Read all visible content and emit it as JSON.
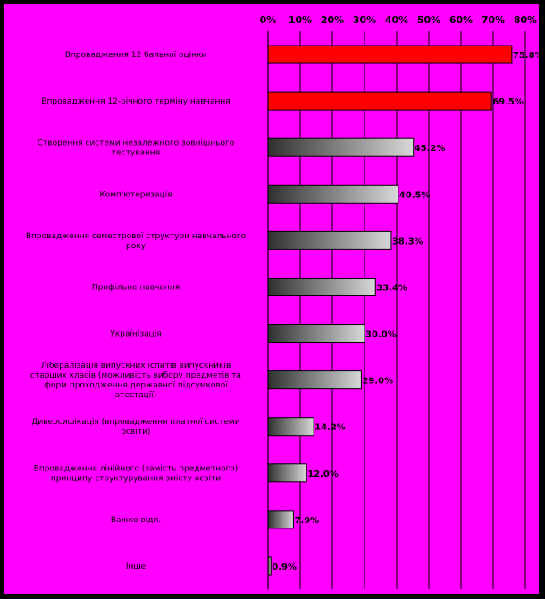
{
  "chart_data": {
    "type": "bar",
    "orientation": "horizontal",
    "title": "",
    "xlabel": "",
    "ylabel": "",
    "xlim": [
      0,
      80
    ],
    "ticks": [
      "0%",
      "10%",
      "20%",
      "30%",
      "40%",
      "50%",
      "60%",
      "70%",
      "80%"
    ],
    "categories": [
      "Впровадження 12 бальної оцінки",
      "Впровадження 12-річного терміну навчання",
      "Створення системи незалежного зовнішнього тестування",
      "Комп'ютеризація",
      "Впровадження семестрової структури навчального року",
      "Профільне навчання",
      "Українізація",
      "Лібералізація випускних іспитів випускників старших класів (можливість вибору предметів та форм проходження державної підсумкової атестації)",
      "Диверсифікація (впровадження платної системи освіти)",
      "Впровадження лінійного (замість предметного) принципу структурування змісту освіти",
      "Важко відп.",
      "Інше"
    ],
    "values": [
      75.8,
      69.5,
      45.2,
      40.5,
      38.3,
      33.4,
      30.0,
      29.0,
      14.2,
      12.0,
      7.9,
      0.9
    ],
    "value_labels": [
      "75.8%",
      "69.5%",
      "45.2%",
      "40.5%",
      "38.3%",
      "33.4%",
      "30.0%",
      "29.0%",
      "14.2%",
      "12.0%",
      "7.9%",
      "0.9%"
    ],
    "highlighted": [
      true,
      true,
      false,
      false,
      false,
      false,
      false,
      false,
      false,
      false,
      false,
      false
    ],
    "grid": true,
    "legend": "none",
    "colors": {
      "background": "#ff00ff",
      "highlight": "#ff0000",
      "bar_dark": "#303030",
      "bar_light": "#d8d8d8",
      "text": "#000000"
    }
  }
}
